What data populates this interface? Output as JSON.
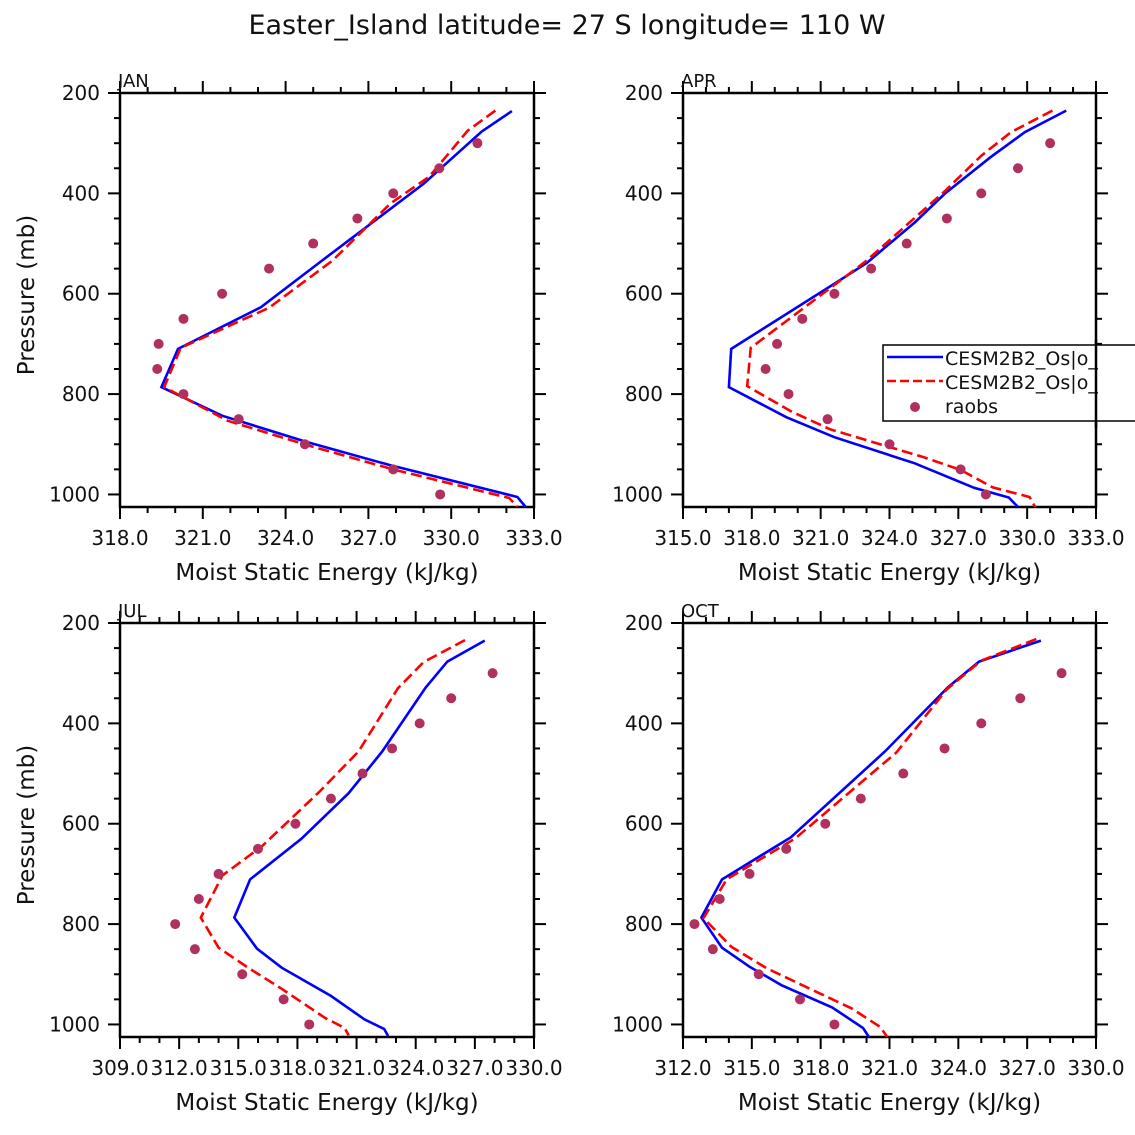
{
  "figure": {
    "title": "Easter_Island   latitude= 27 S longitude= 110 W"
  },
  "legend": {
    "panel": "APR",
    "placement": "center-right (overlapping right axis)",
    "entries": [
      {
        "label": "CESM2B2_Os|o_",
        "style": "solid-line",
        "color": "#0000ff"
      },
      {
        "label": "CESM2B2_Os|o_",
        "style": "dashed-line",
        "color": "#ff0000"
      },
      {
        "label": "raobs",
        "style": "marker",
        "color": "#b03060"
      }
    ]
  },
  "chart_data": [
    {
      "type": "line",
      "panel": "JAN",
      "title": "JAN",
      "xlabel": "Moist Static Energy (kJ/kg)",
      "ylabel": "Pressure (mb)",
      "xlim": [
        318.0,
        333.0
      ],
      "xticks": [
        "318.0",
        "321.0",
        "324.0",
        "327.0",
        "330.0",
        "333.0"
      ],
      "ylim": [
        1025,
        200
      ],
      "yticks": [
        "200",
        "400",
        "600",
        "800",
        "1000"
      ],
      "series": [
        {
          "name": "CESM2B2_Os|o_",
          "style": "solid",
          "color": "#0000ff",
          "points": [
            [
              332.2,
              236
            ],
            [
              331.1,
              277
            ],
            [
              329.0,
              381
            ],
            [
              325.2,
              539
            ],
            [
              323.1,
              627
            ],
            [
              320.1,
              710
            ],
            [
              319.5,
              786
            ],
            [
              321.7,
              843
            ],
            [
              324.8,
              896
            ],
            [
              327.8,
              942
            ],
            [
              332.4,
              1005
            ],
            [
              332.7,
              1025
            ]
          ]
        },
        {
          "name": "CESM2B2_Os|o_",
          "style": "dashed",
          "color": "#ff0000",
          "points": [
            [
              331.6,
              235
            ],
            [
              330.6,
              275
            ],
            [
              329.2,
              367
            ],
            [
              327.8,
              420
            ],
            [
              325.7,
              534
            ],
            [
              323.4,
              628
            ],
            [
              320.2,
              708
            ],
            [
              319.6,
              786
            ],
            [
              321.9,
              853
            ],
            [
              324.8,
              902
            ],
            [
              327.9,
              950
            ],
            [
              332.1,
              1007
            ],
            [
              332.4,
              1025
            ]
          ]
        },
        {
          "name": "raobs",
          "style": "marker",
          "color": "#b03060",
          "points": [
            [
              330.95,
              300
            ],
            [
              329.57,
              350
            ],
            [
              327.9,
              400
            ],
            [
              326.6,
              450
            ],
            [
              325.0,
              500
            ],
            [
              323.4,
              550
            ],
            [
              321.7,
              600
            ],
            [
              320.3,
              650
            ],
            [
              319.4,
              700
            ],
            [
              319.35,
              750
            ],
            [
              320.3,
              800
            ],
            [
              322.3,
              850
            ],
            [
              324.7,
              900
            ],
            [
              327.9,
              950
            ],
            [
              329.6,
              1000
            ]
          ]
        }
      ]
    },
    {
      "type": "line",
      "panel": "APR",
      "title": "APR",
      "xlabel": "Moist Static Energy (kJ/kg)",
      "ylabel": "",
      "xlim": [
        315.0,
        333.0
      ],
      "xticks": [
        "315.0",
        "318.0",
        "321.0",
        "324.0",
        "327.0",
        "330.0",
        "333.0"
      ],
      "ylim": [
        1025,
        200
      ],
      "yticks": [
        "200",
        "400",
        "600",
        "800",
        "1000"
      ],
      "series": [
        {
          "name": "CESM2B2_Os|o_",
          "style": "solid",
          "color": "#0000ff",
          "points": [
            [
              331.7,
              235
            ],
            [
              329.9,
              278
            ],
            [
              328.4,
              328
            ],
            [
              326.4,
              401
            ],
            [
              325.1,
              458
            ],
            [
              323.0,
              539
            ],
            [
              321.6,
              580
            ],
            [
              317.1,
              710
            ],
            [
              317.0,
              786
            ],
            [
              319.5,
              846
            ],
            [
              321.6,
              886
            ],
            [
              325.1,
              938
            ],
            [
              326.7,
              968
            ],
            [
              327.7,
              987
            ],
            [
              329.2,
              1006
            ],
            [
              329.6,
              1025
            ]
          ]
        },
        {
          "name": "CESM2B2_Os|o_",
          "style": "dashed",
          "color": "#ff0000",
          "points": [
            [
              331.1,
              235
            ],
            [
              329.3,
              278
            ],
            [
              328.0,
              325
            ],
            [
              326.4,
              396
            ],
            [
              322.95,
              536
            ],
            [
              317.95,
              708
            ],
            [
              317.8,
              784
            ],
            [
              319.7,
              834
            ],
            [
              321.4,
              870
            ],
            [
              325.5,
              926
            ],
            [
              327.1,
              951
            ],
            [
              328.5,
              986
            ],
            [
              330.1,
              1005
            ],
            [
              330.35,
              1025
            ]
          ]
        },
        {
          "name": "raobs",
          "style": "marker",
          "color": "#b03060",
          "points": [
            [
              331.0,
              300
            ],
            [
              329.6,
              350
            ],
            [
              328.0,
              400
            ],
            [
              326.5,
              450
            ],
            [
              324.75,
              500
            ],
            [
              323.2,
              550
            ],
            [
              321.6,
              600
            ],
            [
              320.2,
              650
            ],
            [
              319.1,
              700
            ],
            [
              318.6,
              750
            ],
            [
              319.6,
              800
            ],
            [
              321.3,
              850
            ],
            [
              324.0,
              900
            ],
            [
              327.1,
              950
            ],
            [
              328.2,
              1000
            ]
          ]
        }
      ]
    },
    {
      "type": "line",
      "panel": "JUL",
      "title": "JUL",
      "xlabel": "Moist Static Energy (kJ/kg)",
      "ylabel": "Pressure (mb)",
      "xlim": [
        309.0,
        330.0
      ],
      "xticks": [
        "309.0",
        "312.0",
        "315.0",
        "318.0",
        "321.0",
        "324.0",
        "327.0",
        "330.0"
      ],
      "ylim": [
        1025,
        200
      ],
      "yticks": [
        "200",
        "400",
        "600",
        "800",
        "1000"
      ],
      "series": [
        {
          "name": "CESM2B2_Os|o_",
          "style": "solid",
          "color": "#0000ff",
          "points": [
            [
              327.5,
              235
            ],
            [
              325.6,
              277
            ],
            [
              324.5,
              329
            ],
            [
              322.3,
              456
            ],
            [
              320.6,
              539
            ],
            [
              318.2,
              630
            ],
            [
              315.6,
              711
            ],
            [
              314.8,
              787
            ],
            [
              315.95,
              849
            ],
            [
              317.2,
              887
            ],
            [
              319.7,
              943
            ],
            [
              321.4,
              990
            ],
            [
              322.4,
              1009
            ],
            [
              322.6,
              1023
            ]
          ]
        },
        {
          "name": "CESM2B2_Os|o_",
          "style": "dashed",
          "color": "#ff0000",
          "points": [
            [
              326.5,
              234
            ],
            [
              324.4,
              278
            ],
            [
              323.1,
              330
            ],
            [
              321.1,
              456
            ],
            [
              319.1,
              537
            ],
            [
              316.2,
              645
            ],
            [
              314.2,
              703
            ],
            [
              313.1,
              787
            ],
            [
              314.0,
              847
            ],
            [
              315.5,
              887
            ],
            [
              317.2,
              929
            ],
            [
              319.4,
              987
            ],
            [
              320.4,
              1007
            ],
            [
              320.6,
              1022
            ]
          ]
        },
        {
          "name": "raobs",
          "style": "marker",
          "color": "#b03060",
          "points": [
            [
              327.9,
              300
            ],
            [
              325.8,
              350
            ],
            [
              324.2,
              400
            ],
            [
              322.8,
              450
            ],
            [
              321.3,
              500
            ],
            [
              319.7,
              550
            ],
            [
              317.9,
              600
            ],
            [
              316.0,
              650
            ],
            [
              314.0,
              700
            ],
            [
              313.0,
              750
            ],
            [
              311.8,
              800
            ],
            [
              312.8,
              850
            ],
            [
              315.2,
              900
            ],
            [
              317.3,
              950
            ],
            [
              318.6,
              1000
            ]
          ]
        }
      ]
    },
    {
      "type": "line",
      "panel": "OCT",
      "title": "OCT",
      "xlabel": "Moist Static Energy (kJ/kg)",
      "ylabel": "",
      "xlim": [
        312.0,
        330.0
      ],
      "xticks": [
        "312.0",
        "315.0",
        "318.0",
        "321.0",
        "324.0",
        "327.0",
        "330.0"
      ],
      "ylim": [
        1025,
        200
      ],
      "yticks": [
        "200",
        "400",
        "600",
        "800",
        "1000"
      ],
      "series": [
        {
          "name": "CESM2B2_Os|o_",
          "style": "solid",
          "color": "#0000ff",
          "points": [
            [
              327.6,
              235
            ],
            [
              324.9,
              277
            ],
            [
              323.55,
              328
            ],
            [
              320.8,
              456
            ],
            [
              316.7,
              627
            ],
            [
              313.7,
              711
            ],
            [
              312.8,
              787
            ],
            [
              313.7,
              847
            ],
            [
              314.9,
              885
            ],
            [
              316.3,
              922
            ],
            [
              318.5,
              966
            ],
            [
              319.85,
              1007
            ],
            [
              320.1,
              1025
            ]
          ]
        },
        {
          "name": "CESM2B2_Os|o_",
          "style": "dashed",
          "color": "#ff0000",
          "points": [
            [
              327.4,
              232
            ],
            [
              325.0,
              275
            ],
            [
              323.5,
              332
            ],
            [
              321.3,
              458
            ],
            [
              316.9,
              629
            ],
            [
              313.9,
              711
            ],
            [
              312.9,
              788
            ],
            [
              314.1,
              845
            ],
            [
              315.65,
              888
            ],
            [
              317.95,
              938
            ],
            [
              319.35,
              968
            ],
            [
              320.6,
              1005
            ],
            [
              320.9,
              1025
            ]
          ]
        },
        {
          "name": "raobs",
          "style": "marker",
          "color": "#b03060",
          "points": [
            [
              328.5,
              300
            ],
            [
              326.7,
              350
            ],
            [
              325.0,
              400
            ],
            [
              323.4,
              450
            ],
            [
              321.6,
              500
            ],
            [
              319.75,
              550
            ],
            [
              318.2,
              600
            ],
            [
              316.5,
              650
            ],
            [
              314.9,
              700
            ],
            [
              313.6,
              750
            ],
            [
              312.5,
              800
            ],
            [
              313.3,
              850
            ],
            [
              315.3,
              900
            ],
            [
              317.1,
              950
            ],
            [
              318.6,
              1000
            ]
          ]
        }
      ]
    }
  ]
}
